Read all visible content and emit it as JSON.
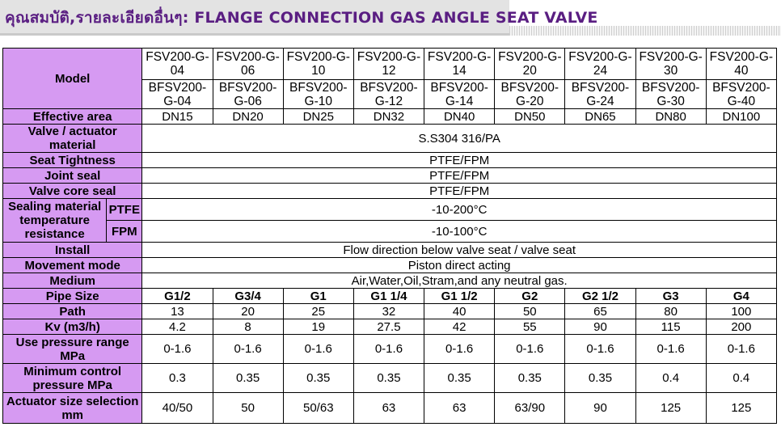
{
  "page_title": "คุณสมบัติ,รายละเอียดอื่นๆ: FLANGE CONNECTION GAS ANGLE SEAT VALVE",
  "colors": {
    "header_bg": "#d69af2",
    "title_color": "#5a1e82",
    "banner_bg": "#e3e3e3"
  },
  "rows": {
    "model": {
      "label": "Model",
      "line1": [
        "FSV200-G-04",
        "FSV200-G-06",
        "FSV200-G-10",
        "FSV200-G-12",
        "FSV200-G-14",
        "FSV200-G-20",
        "FSV200-G-24",
        "FSV200-G-30",
        "FSV200-G-40"
      ],
      "line2": [
        "BFSV200-G-04",
        "BFSV200-G-06",
        "BFSV200-G-10",
        "BFSV200-G-12",
        "BFSV200-G-14",
        "BFSV200-G-20",
        "BFSV200-G-24",
        "BFSV200-G-30",
        "BFSV200-G-40"
      ]
    },
    "effective_area": {
      "label": "Effective area",
      "values": [
        "DN15",
        "DN20",
        "DN25",
        "DN32",
        "DN40",
        "DN50",
        "DN65",
        "DN80",
        "DN100"
      ]
    },
    "valve_material": {
      "label": "Valve / actuator material",
      "value": "S.S304 316/PA"
    },
    "seat_tightness": {
      "label": "Seat Tightness",
      "value": "PTFE/FPM"
    },
    "joint_seal": {
      "label": "Joint seal",
      "value": "PTFE/FPM"
    },
    "valve_core_seal": {
      "label": "Valve core seal",
      "value": "PTFE/FPM"
    },
    "sealing_temp": {
      "label": "Sealing material temperature resistance",
      "ptfe_label": "PTFE",
      "ptfe_value": "-10-200°C",
      "fpm_label": "FPM",
      "fpm_value": "-10-100°C"
    },
    "install": {
      "label": "Install",
      "value": "Flow direction below valve seat / valve seat"
    },
    "movement_mode": {
      "label": "Movement mode",
      "value": "Piston direct acting"
    },
    "medium": {
      "label": "Medium",
      "value": "Air,Water,Oil,Stram,and any neutral gas."
    },
    "pipe_size": {
      "label": "Pipe Size",
      "values": [
        "G1/2",
        "G3/4",
        "G1",
        "G1 1/4",
        "G1 1/2",
        "G2",
        "G2 1/2",
        "G3",
        "G4"
      ]
    },
    "path": {
      "label": "Path",
      "values": [
        "13",
        "20",
        "25",
        "32",
        "40",
        "50",
        "65",
        "80",
        "100"
      ]
    },
    "kv": {
      "label": "Kv (m3/h)",
      "values": [
        "4.2",
        "8",
        "19",
        "27.5",
        "42",
        "55",
        "90",
        "115",
        "200"
      ]
    },
    "use_pressure": {
      "label": "Use pressure range MPa",
      "values": [
        "0-1.6",
        "0-1.6",
        "0-1.6",
        "0-1.6",
        "0-1.6",
        "0-1.6",
        "0-1.6",
        "0-1.6",
        "0-1.6"
      ]
    },
    "min_pressure": {
      "label": "Minimum control pressure MPa",
      "values": [
        "0.3",
        "0.35",
        "0.35",
        "0.35",
        "0.35",
        "0.35",
        "0.35",
        "0.4",
        "0.4"
      ]
    },
    "actuator_size": {
      "label": "Actuator size selection mm",
      "values": [
        "40/50",
        "50",
        "50/63",
        "63",
        "63",
        "63/90",
        "90",
        "125",
        "125"
      ]
    }
  }
}
